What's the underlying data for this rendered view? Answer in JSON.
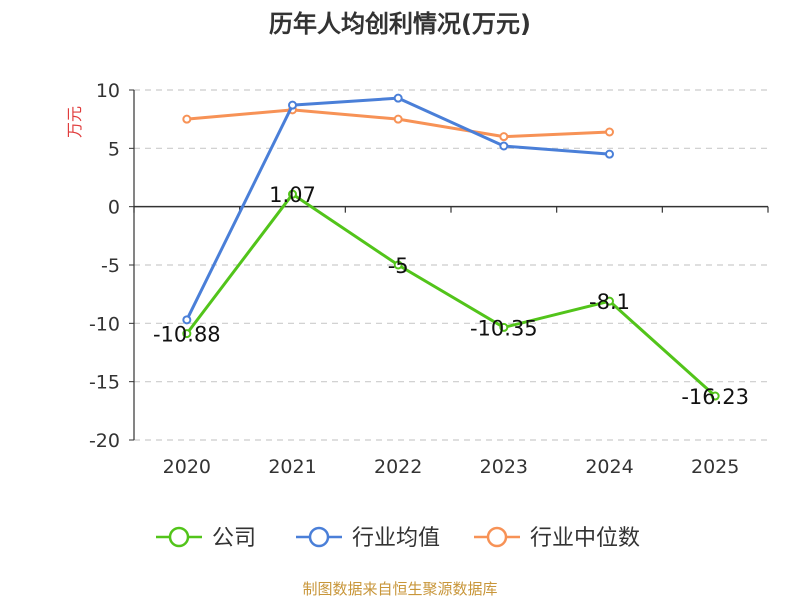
{
  "chart_data": {
    "type": "line",
    "title": "历年人均创利情况(万元)",
    "ylabel": "万元",
    "xlabel": "",
    "categories": [
      "2020",
      "2021",
      "2022",
      "2023",
      "2024",
      "2025"
    ],
    "ylim": [
      -20,
      10
    ],
    "yticks": [
      "10",
      "5",
      "0",
      "-5",
      "-10",
      "-15",
      "-20"
    ],
    "grid": true,
    "legend_position": "bottom",
    "series": [
      {
        "name": "公司",
        "color": "#52c41a",
        "values": [
          -10.88,
          1.07,
          -5,
          -10.35,
          -8.1,
          -16.23
        ],
        "labels": [
          "-10.88",
          "1.07",
          "-5",
          "-10.35",
          "-8.1",
          "-16.23"
        ]
      },
      {
        "name": "行业均值",
        "color": "#4a7fd8",
        "values": [
          -9.7,
          8.7,
          9.3,
          5.2,
          4.5,
          null
        ]
      },
      {
        "name": "行业中位数",
        "color": "#f79256",
        "values": [
          7.5,
          8.3,
          7.5,
          6.0,
          6.4,
          null
        ]
      }
    ],
    "source": "制图数据来自恒生聚源数据库"
  }
}
